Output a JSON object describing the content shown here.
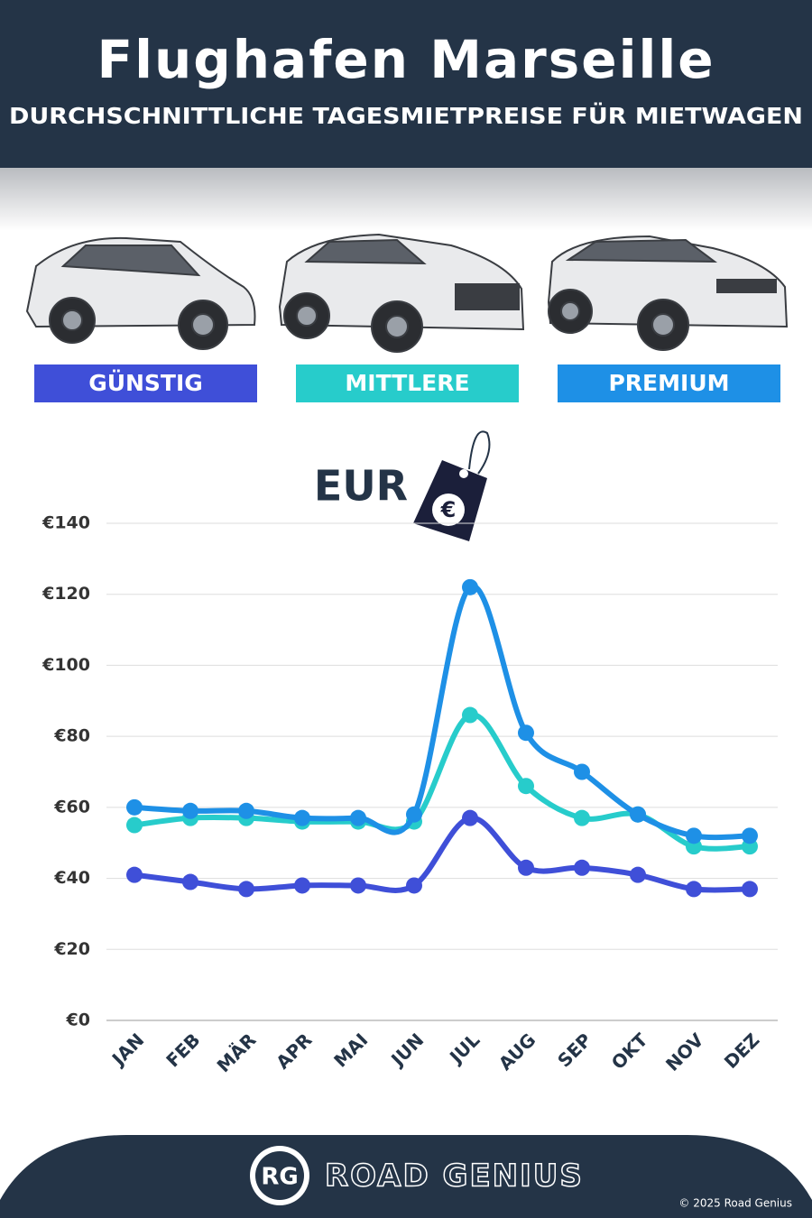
{
  "chart_data": {
    "type": "line",
    "title": "Flughafen Marseille",
    "subtitle": "DURCHSCHNITTLICHE TAGESMIETPREISE FÜR MIETWAGEN",
    "y_label": "EUR",
    "currency_symbol": "€",
    "categories": [
      "JAN",
      "FEB",
      "MÄR",
      "APR",
      "MAI",
      "JUN",
      "JUL",
      "AUG",
      "SEP",
      "OKT",
      "NOV",
      "DEZ"
    ],
    "series": [
      {
        "name": "GÜNSTIG",
        "color": "#3f4fd8",
        "values": [
          41,
          39,
          37,
          38,
          38,
          38,
          57,
          43,
          43,
          41,
          37,
          37
        ]
      },
      {
        "name": "MITTLERE",
        "color": "#27cccb",
        "values": [
          55,
          57,
          57,
          56,
          56,
          56,
          86,
          66,
          57,
          58,
          49,
          49
        ]
      },
      {
        "name": "PREMIUM",
        "color": "#1e90e6",
        "values": [
          60,
          59,
          59,
          57,
          57,
          58,
          122,
          81,
          70,
          58,
          52,
          52
        ]
      }
    ],
    "ylim": [
      0,
      140
    ],
    "yticks": [
      {
        "value": 0,
        "label": "€0"
      },
      {
        "value": 20,
        "label": "€20"
      },
      {
        "value": 40,
        "label": "€40"
      },
      {
        "value": 60,
        "label": "€60"
      },
      {
        "value": 80,
        "label": "€80"
      },
      {
        "value": 100,
        "label": "€100"
      },
      {
        "value": 120,
        "label": "€120"
      },
      {
        "value": 140,
        "label": "€140"
      }
    ],
    "grid": true
  },
  "footer": {
    "logo": "RG",
    "brand": "ROAD GENIUS",
    "copyright": "© 2025 Road Genius"
  }
}
